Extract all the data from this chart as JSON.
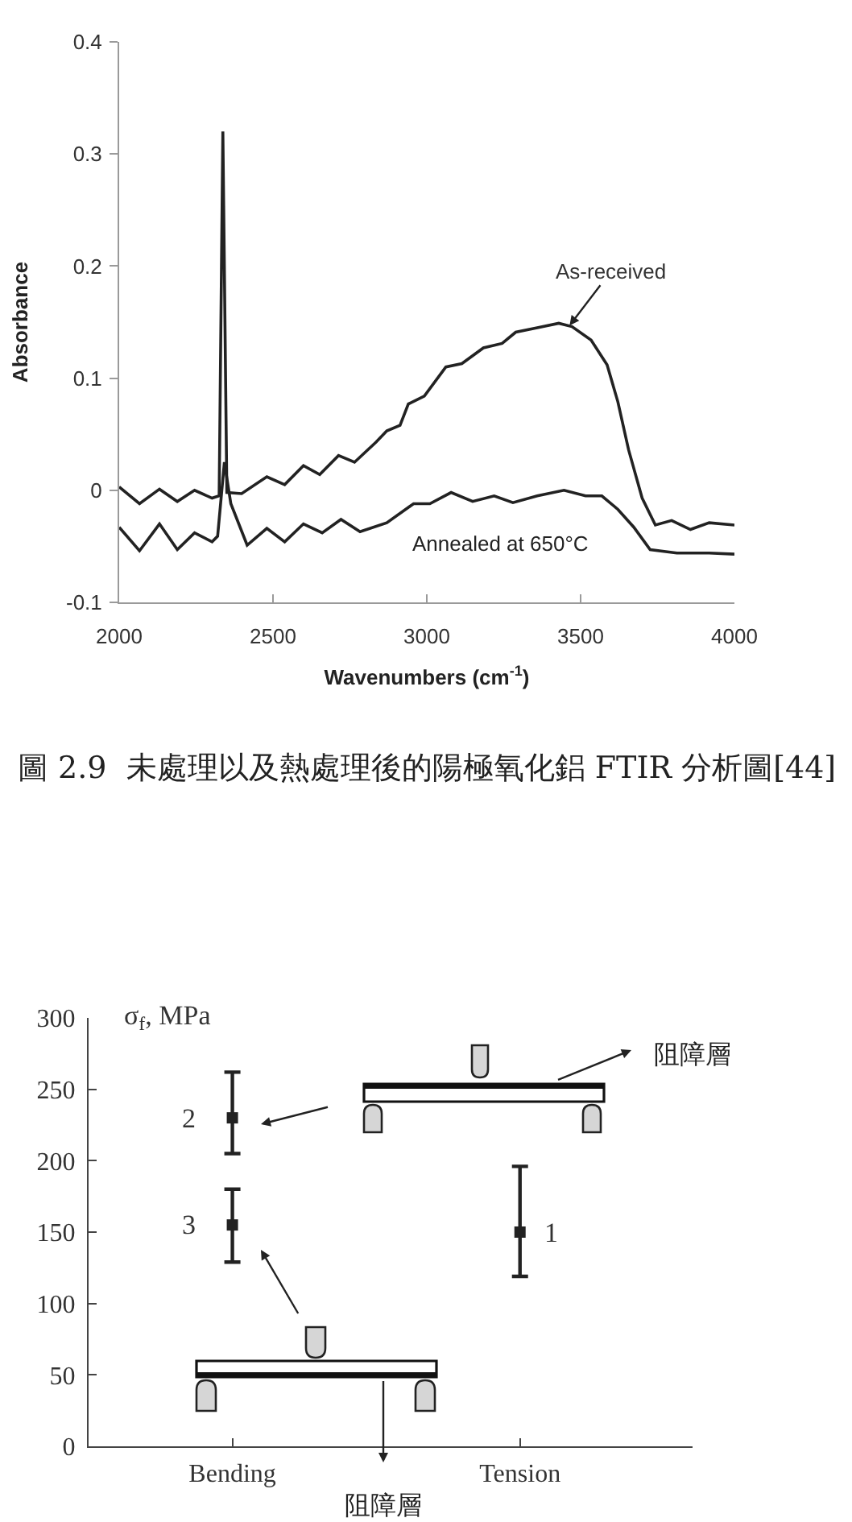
{
  "chart_data": [
    {
      "type": "line",
      "xlabel": "Wavenumbers (cm$^{-1}$)",
      "ylabel": "Absorbance",
      "xlim": [
        2000,
        4000
      ],
      "xticks": [
        2000,
        2500,
        3000,
        3500,
        4000
      ],
      "ylim": [
        -0.1,
        0.4
      ],
      "yticks": [
        -0.1,
        0,
        0.1,
        0.2,
        0.3,
        0.4
      ],
      "series": [
        {
          "color": "#222222",
          "x": [
            2000,
            2066,
            2131,
            2189,
            2245,
            2302,
            2325,
            2337,
            2350,
            2398,
            2480,
            2538,
            2599,
            2652,
            2713,
            2765,
            2835,
            2870,
            2913,
            2940,
            2992,
            3062,
            3114,
            3184,
            3245,
            3289,
            3359,
            3429,
            3472,
            3534,
            3586,
            3621,
            3656,
            3700,
            3743,
            3796,
            3857,
            3918,
            4000
          ],
          "values": [
            0.003,
            -0.012,
            0.001,
            -0.01,
            0.0,
            -0.007,
            -0.005,
            0.32,
            -0.002,
            -0.003,
            0.012,
            0.005,
            0.022,
            0.014,
            0.031,
            0.025,
            0.043,
            0.053,
            0.058,
            0.077,
            0.084,
            0.11,
            0.113,
            0.127,
            0.131,
            0.141,
            0.145,
            0.149,
            0.146,
            0.134,
            0.112,
            0.079,
            0.036,
            -0.007,
            -0.031,
            -0.027,
            -0.035,
            -0.029,
            -0.031
          ]
        },
        {
          "color": "#222222",
          "x": [
            2000,
            2066,
            2131,
            2189,
            2245,
            2302,
            2320,
            2342,
            2363,
            2416,
            2480,
            2538,
            2599,
            2660,
            2721,
            2783,
            2870,
            2957,
            3010,
            3079,
            3149,
            3219,
            3280,
            3359,
            3446,
            3516,
            3569,
            3621,
            3673,
            3726,
            3813,
            3918,
            4000
          ],
          "values": [
            -0.033,
            -0.054,
            -0.03,
            -0.053,
            -0.038,
            -0.046,
            -0.041,
            0.025,
            -0.012,
            -0.049,
            -0.034,
            -0.046,
            -0.03,
            -0.038,
            -0.026,
            -0.037,
            -0.029,
            -0.012,
            -0.012,
            -0.002,
            -0.01,
            -0.005,
            -0.011,
            -0.005,
            0.0,
            -0.005,
            -0.005,
            -0.017,
            -0.033,
            -0.053,
            -0.056,
            -0.056,
            -0.057
          ]
        }
      ],
      "annotations": [
        {
          "text": "As-received",
          "x": 3464,
          "y": 0.147
        },
        "Annealed at 650°C",
        "圖 2.9  未處理以及熱處理後的陽極氧化鋁 FTIR 分析圖[44]"
      ]
    },
    {
      "type": "scatter",
      "ylabel": "σ$_{f}$, MPa",
      "categories": [
        "Bending",
        "Tension"
      ],
      "ylim": [
        0,
        300
      ],
      "yticks": [
        0,
        50,
        100,
        150,
        200,
        250,
        300
      ],
      "marker": "square",
      "series": [
        {
          "color": "#222222",
          "x": [
            "Bending",
            "Bending",
            "Tension"
          ],
          "values": [
            230,
            155,
            150
          ],
          "errors": [
            [
              205,
              262
            ],
            [
              129,
              180
            ],
            [
              119,
              196
            ]
          ]
        }
      ],
      "annotations": [
        {
          "text": "2",
          "x": "Bending",
          "y": 230
        },
        {
          "text": "3",
          "x": "Bending",
          "y": 155
        },
        {
          "text": "1",
          "x": "Tension",
          "y": 150
        },
        "阻障層",
        "阻障層"
      ]
    }
  ]
}
